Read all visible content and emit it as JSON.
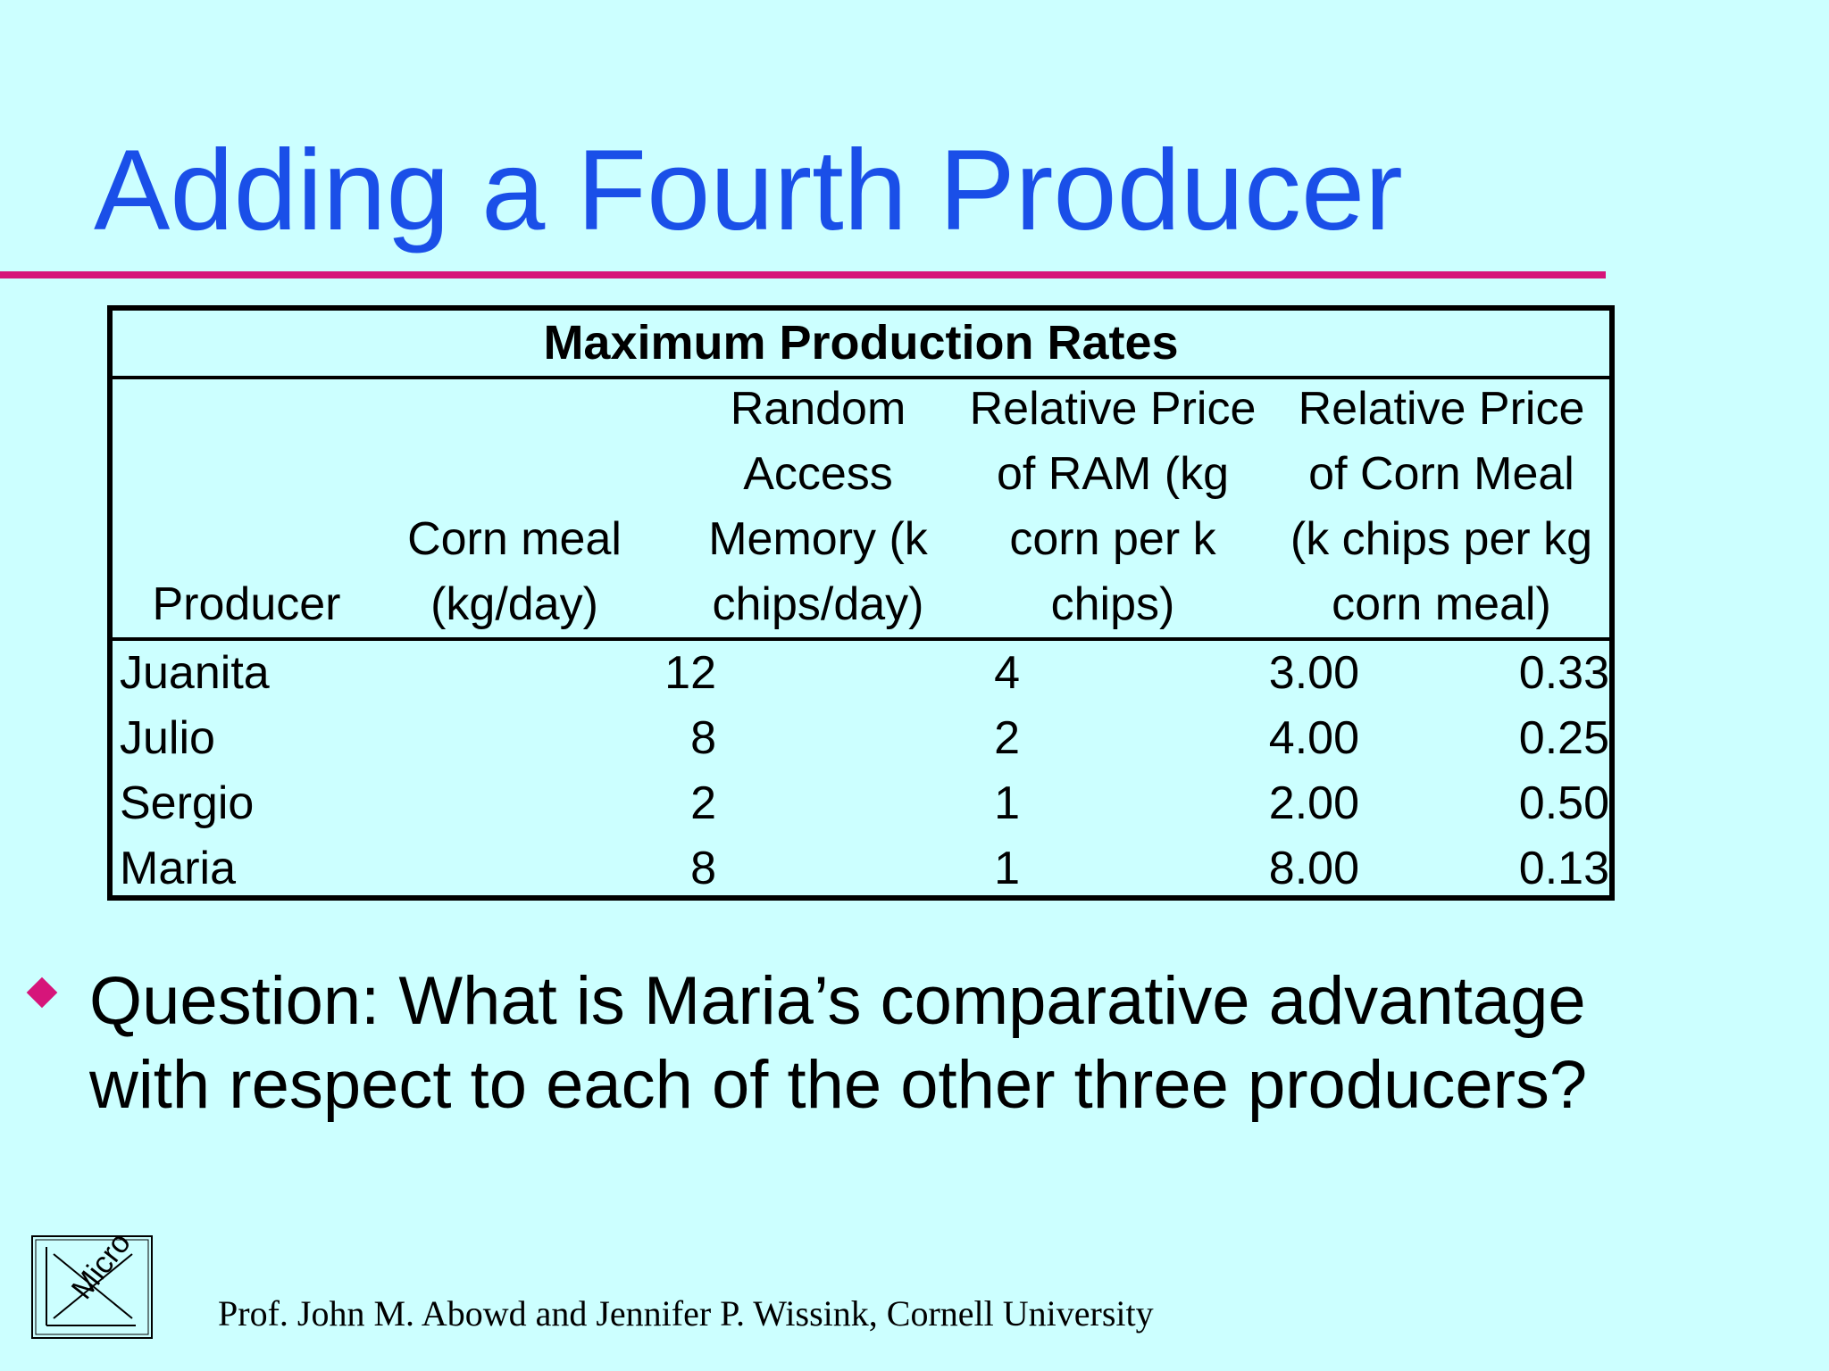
{
  "slide": {
    "title": "Adding a Fourth Producer",
    "question": "Question: What is Maria’s comparative advantage with respect to each of the other three producers?",
    "footer": "Prof. John M. Abowd and Jennifer P. Wissink, Cornell University",
    "logo_text": "Micro"
  },
  "colors": {
    "background": "#ccffff",
    "title": "#1a4fe8",
    "accent": "#d6157a"
  },
  "table": {
    "caption": "Maximum Production Rates",
    "headers": [
      "Producer",
      "Corn meal (kg/day)",
      "Random Access Memory (k chips/day)",
      "Relative Price of RAM (kg corn per k chips)",
      "Relative Price of Corn Meal (k chips per kg corn meal)"
    ],
    "rows": [
      [
        "Juanita",
        "12",
        "4",
        "3.00",
        "0.33"
      ],
      [
        "Julio",
        "8",
        "2",
        "4.00",
        "0.25"
      ],
      [
        "Sergio",
        "2",
        "1",
        "2.00",
        "0.50"
      ],
      [
        "Maria",
        "8",
        "1",
        "8.00",
        "0.13"
      ]
    ]
  }
}
